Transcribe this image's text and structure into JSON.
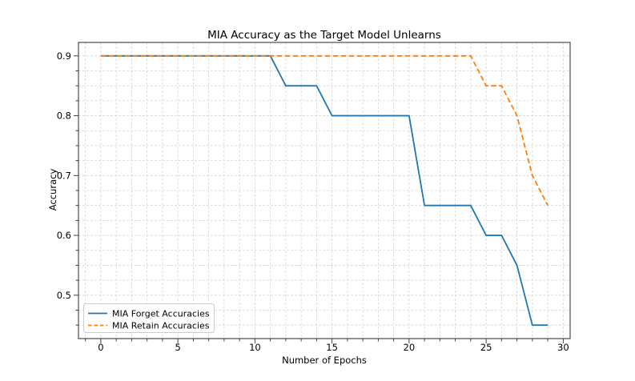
{
  "figure": {
    "background": "#ffffff",
    "axes_edge_color": "#3a3a3a",
    "grid_color": "#d6d6d6",
    "tick_color": "#2b2b2b"
  },
  "chart_data": {
    "type": "line",
    "title": "MIA Accuracy as the Target Model Unlearns",
    "xlabel": "Number of Epochs",
    "ylabel": "Accuracy",
    "x": [
      0,
      1,
      2,
      3,
      4,
      5,
      6,
      7,
      8,
      9,
      10,
      11,
      12,
      13,
      14,
      15,
      16,
      17,
      18,
      19,
      20,
      21,
      22,
      23,
      24,
      25,
      26,
      27,
      28,
      29
    ],
    "series": [
      {
        "name": "MIA Forget Accuracies",
        "color": "#1f77b4",
        "linestyle": "solid",
        "values": [
          0.9,
          0.9,
          0.9,
          0.9,
          0.9,
          0.9,
          0.9,
          0.9,
          0.9,
          0.9,
          0.9,
          0.9,
          0.85,
          0.85,
          0.85,
          0.8,
          0.8,
          0.8,
          0.8,
          0.8,
          0.8,
          0.65,
          0.65,
          0.65,
          0.65,
          0.6,
          0.6,
          0.55,
          0.45,
          0.45
        ]
      },
      {
        "name": "MIA Retain Accuracies",
        "color": "#ff7f0e",
        "linestyle": "dashed",
        "values": [
          0.9,
          0.9,
          0.9,
          0.9,
          0.9,
          0.9,
          0.9,
          0.9,
          0.9,
          0.9,
          0.9,
          0.9,
          0.9,
          0.9,
          0.9,
          0.9,
          0.9,
          0.9,
          0.9,
          0.9,
          0.9,
          0.9,
          0.9,
          0.9,
          0.9,
          0.85,
          0.85,
          0.8,
          0.7,
          0.65
        ]
      }
    ],
    "xlim": [
      -1.45,
      30.45
    ],
    "ylim": [
      0.4275,
      0.9225
    ],
    "x_major_ticks": [
      0,
      5,
      10,
      15,
      20,
      25,
      30
    ],
    "x_minor_tick_step": 1,
    "y_major_ticks": [
      0.5,
      0.6,
      0.7,
      0.8,
      0.9
    ],
    "y_minor_tick_step": 0.025,
    "grid": {
      "which": "both",
      "linestyle": "dashed"
    },
    "legend": {
      "location": "lower-left",
      "entries": [
        "MIA Forget Accuracies",
        "MIA Retain Accuracies"
      ]
    }
  }
}
